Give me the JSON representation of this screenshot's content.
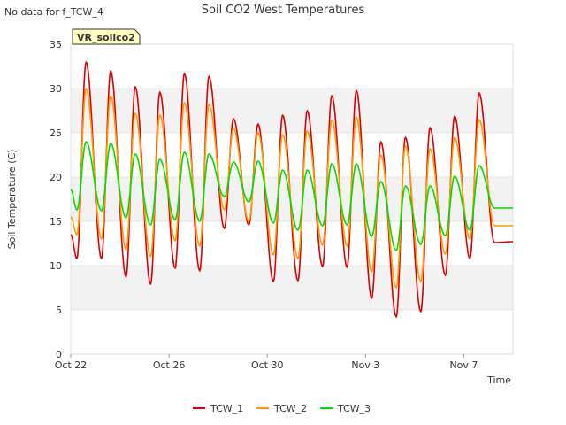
{
  "header": {
    "note": "No data for f_TCW_4"
  },
  "chart_data": {
    "type": "line",
    "title": "Soil CO2 West Temperatures",
    "xlabel": "Time",
    "ylabel": "Soil Temperature (C)",
    "ylim": [
      0,
      35
    ],
    "xlim": [
      "2023-10-22",
      "2023-11-09"
    ],
    "yticks": [
      0,
      5,
      10,
      15,
      20,
      25,
      30,
      35
    ],
    "xticks": [
      {
        "date": "2023-10-22",
        "label": "Oct 22"
      },
      {
        "date": "2023-10-26",
        "label": "Oct 26"
      },
      {
        "date": "2023-10-30",
        "label": "Oct 30"
      },
      {
        "date": "2023-11-03",
        "label": "Nov 3"
      },
      {
        "date": "2023-11-07",
        "label": "Nov 7"
      }
    ],
    "grid": "horizontal bands",
    "legend": "bottom",
    "station_label": "VR_soilco2",
    "daily": {
      "dates": [
        "2023-10-22",
        "2023-10-23",
        "2023-10-24",
        "2023-10-25",
        "2023-10-26",
        "2023-10-27",
        "2023-10-28",
        "2023-10-29",
        "2023-10-30",
        "2023-10-31",
        "2023-11-01",
        "2023-11-02",
        "2023-11-03",
        "2023-11-04",
        "2023-11-05",
        "2023-11-06",
        "2023-11-07",
        "2023-11-08"
      ],
      "min_time": "06:00",
      "max_time": "15:00"
    },
    "series": [
      {
        "name": "TCW_1",
        "color": "#dd0000",
        "start": 13.5,
        "min": [
          10.8,
          10.8,
          8.7,
          7.9,
          9.7,
          9.4,
          14.2,
          14.6,
          8.2,
          8.3,
          9.9,
          9.8,
          6.3,
          4.2,
          4.8,
          8.9,
          10.8,
          12.6
        ],
        "max": [
          33.0,
          32.0,
          30.2,
          29.6,
          31.7,
          31.4,
          26.6,
          26.0,
          27.0,
          27.5,
          29.2,
          29.8,
          24.0,
          24.5,
          25.6,
          26.9,
          29.5
        ],
        "end": 12.7
      },
      {
        "name": "TCW_2",
        "color": "#ff9900",
        "start": 15.5,
        "min": [
          13.5,
          13.0,
          11.8,
          11.0,
          12.8,
          12.2,
          16.3,
          15.0,
          11.2,
          10.8,
          12.3,
          12.2,
          9.3,
          7.5,
          8.2,
          11.3,
          13.0,
          14.5
        ],
        "max": [
          30.0,
          29.2,
          27.2,
          27.0,
          28.4,
          28.2,
          25.5,
          25.0,
          24.8,
          25.2,
          26.4,
          26.8,
          22.5,
          23.5,
          23.2,
          24.5,
          26.5
        ],
        "end": 14.5
      },
      {
        "name": "TCW_3",
        "color": "#00dd00",
        "start": 18.6,
        "min": [
          16.3,
          16.2,
          15.4,
          14.6,
          15.2,
          15.0,
          17.8,
          17.2,
          14.8,
          14.0,
          14.5,
          14.6,
          13.3,
          11.7,
          12.4,
          13.4,
          14.0,
          16.5
        ],
        "max": [
          24.0,
          23.8,
          22.6,
          22.0,
          22.8,
          22.6,
          21.7,
          21.8,
          20.8,
          20.8,
          21.5,
          21.5,
          19.5,
          19.0,
          19.0,
          20.1,
          21.3
        ],
        "end": 16.5
      }
    ]
  }
}
